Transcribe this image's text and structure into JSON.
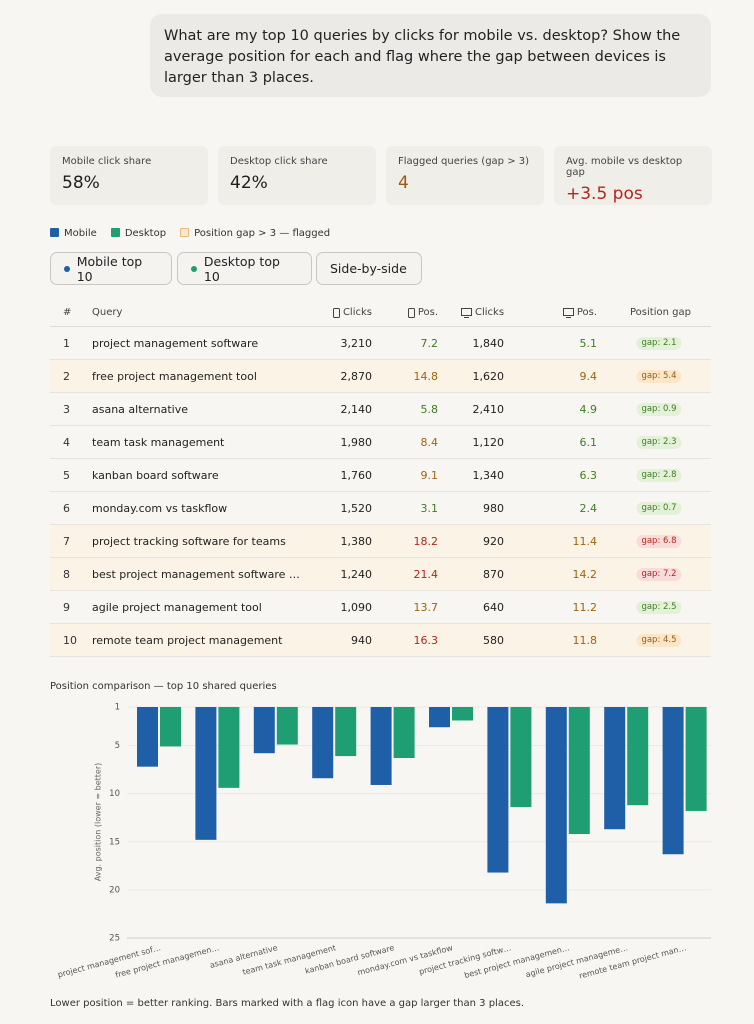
{
  "message": "What are my top 10 queries by clicks for mobile vs. desktop? Show the average position for each and flag where the gap between devices is larger than 3 places.",
  "stats": [
    {
      "label": "Mobile click share",
      "value": "58%"
    },
    {
      "label": "Desktop click share",
      "value": "42%"
    },
    {
      "label": "Flagged queries (gap > 3)",
      "value": "4"
    },
    {
      "label": "Avg. mobile vs desktop gap",
      "value": "+3.5 pos"
    }
  ],
  "legend_flagged": "Position gap > 3 — flagged",
  "tabs": [
    "Mobile top 10",
    "Desktop top 10",
    "Side-by-side"
  ],
  "table": {
    "headers": [
      "#",
      "Query",
      "Clicks",
      "Pos.",
      "Clicks",
      "Pos.",
      "Position gap"
    ],
    "rows": [
      {
        "flagged": false,
        "cells": [
          "1",
          "project management software",
          "3,210",
          "7.2",
          "1,840",
          "5.1",
          "gap: 2.1"
        ]
      },
      {
        "flagged": true,
        "cells": [
          "2",
          "free project management tool",
          "2,870",
          "14.8",
          "1,620",
          "9.4",
          "gap: 5.4"
        ]
      },
      {
        "flagged": false,
        "cells": [
          "3",
          "asana alternative",
          "2,140",
          "5.8",
          "2,410",
          "4.9",
          "gap: 0.9"
        ]
      },
      {
        "flagged": false,
        "cells": [
          "4",
          "team task management",
          "1,980",
          "8.4",
          "1,120",
          "6.1",
          "gap: 2.3"
        ]
      },
      {
        "flagged": false,
        "cells": [
          "5",
          "kanban board software",
          "1,760",
          "9.1",
          "1,340",
          "6.3",
          "gap: 2.8"
        ]
      },
      {
        "flagged": false,
        "cells": [
          "6",
          "monday.com vs taskflow",
          "1,520",
          "3.1",
          "980",
          "2.4",
          "gap: 0.7"
        ]
      },
      {
        "flagged": true,
        "cells": [
          "7",
          "project tracking software for teams",
          "1,380",
          "18.2",
          "920",
          "11.4",
          "gap: 6.8"
        ]
      },
      {
        "flagged": true,
        "cells": [
          "8",
          "best project management software …",
          "1,240",
          "21.4",
          "870",
          "14.2",
          "gap: 7.2"
        ]
      },
      {
        "flagged": false,
        "cells": [
          "9",
          "agile project management tool",
          "1,090",
          "13.7",
          "640",
          "11.2",
          "gap: 2.5"
        ]
      },
      {
        "flagged": true,
        "cells": [
          "10",
          "remote team project management",
          "940",
          "16.3",
          "580",
          "11.8",
          "gap: 4.5"
        ]
      }
    ]
  },
  "chart_data": {
    "type": "bar",
    "title": "Position comparison — top 10 shared queries",
    "y_label": "Avg. position (lower = better)",
    "categories": [
      "project management sof…",
      "free project managemen…",
      "asana alternative",
      "team task management",
      "kanban board software",
      "monday.com vs taskflow",
      "project tracking softw…",
      "best project managemen…",
      "agile project manageme…",
      "remote team project man…"
    ],
    "series": [
      {
        "name": "Mobile",
        "color": "#1f5fa8",
        "values": [
          7.2,
          14.8,
          5.8,
          8.4,
          9.1,
          3.1,
          18.2,
          21.4,
          13.7,
          16.3
        ]
      },
      {
        "name": "Desktop",
        "color": "#1f9e74",
        "values": [
          5.1,
          9.4,
          4.9,
          6.1,
          6.3,
          2.4,
          11.4,
          14.2,
          11.2,
          11.8
        ]
      }
    ],
    "ylim": [
      1,
      25
    ],
    "yticks": [
      1,
      5,
      10,
      15,
      20,
      25
    ],
    "y_inverted": true,
    "grid": true
  },
  "footnote": "Lower position = better ranking. Bars marked with a flag icon have a gap larger than 3 places."
}
